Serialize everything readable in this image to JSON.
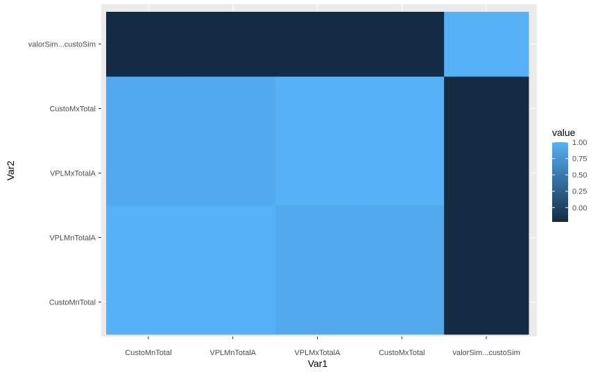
{
  "chart_data": {
    "type": "heatmap",
    "xlabel": "Var1",
    "ylabel": "Var2",
    "x_categories": [
      "CustoMnTotal",
      "VPLMnTotalA",
      "VPLMxTotalA",
      "CustoMxTotal",
      "valorSim...custoSim"
    ],
    "y_categories": [
      "CustoMnTotal",
      "VPLMnTotalA",
      "VPLMxTotalA",
      "CustoMxTotal",
      "valorSim...custoSim"
    ],
    "values": [
      [
        1.0,
        1.0,
        0.93,
        0.93,
        -0.22
      ],
      [
        1.0,
        1.0,
        0.93,
        0.93,
        -0.22
      ],
      [
        0.93,
        0.93,
        1.0,
        1.0,
        -0.22
      ],
      [
        0.93,
        0.93,
        1.0,
        1.0,
        -0.22
      ],
      [
        -0.22,
        -0.22,
        -0.22,
        -0.22,
        1.0
      ]
    ],
    "value_range": [
      -0.22,
      1.0
    ],
    "color_low": "#132B43",
    "color_high": "#56B1F7",
    "legend": {
      "title": "value",
      "position": "right",
      "ticks": [
        1.0,
        0.75,
        0.5,
        0.25,
        0.0
      ],
      "tick_labels": [
        "1.00",
        "0.75",
        "0.50",
        "0.25",
        "0.00"
      ]
    },
    "panel_background": "#EBEBEB",
    "grid": true
  }
}
